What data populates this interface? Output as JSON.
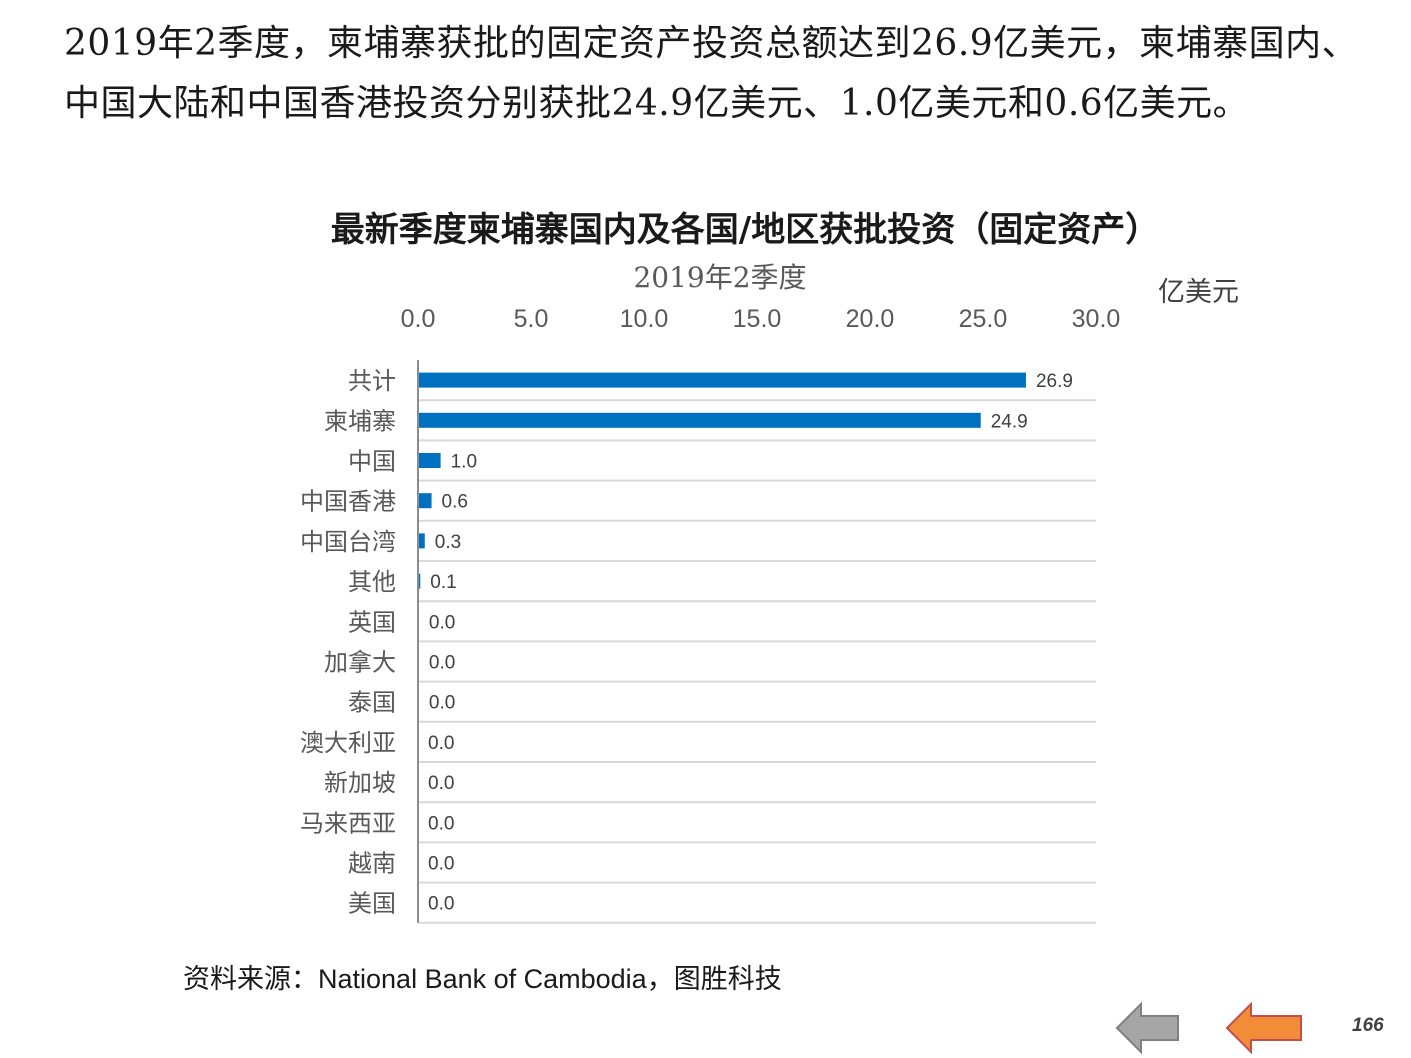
{
  "intro_text": "2019年2季度，柬埔寨获批的固定资产投资总额达到26.9亿美元，柬埔寨国内、中国大陆和中国香港投资分别获批24.9亿美元、1.0亿美元和0.6亿美元。",
  "unit_label": "亿美元",
  "source_text": "资料来源：National Bank of Cambodia，图胜科技",
  "page_number": "166",
  "colors": {
    "bar": "#0070C0",
    "nav_prev": "#A6A6A6",
    "nav_next": "#F28C38"
  },
  "nav": {
    "prev_icon": "arrow-left-icon",
    "next_icon": "arrow-left-icon"
  },
  "chart_data": {
    "type": "bar",
    "orientation": "horizontal",
    "title": "最新季度柬埔寨国内及各国/地区获批投资（固定资产）",
    "subtitle": "2019年2季度",
    "categories": [
      "共计",
      "柬埔寨",
      "中国",
      "中国香港",
      "中国台湾",
      "其他",
      "英国",
      "加拿大",
      "泰国",
      "澳大利亚",
      "新加坡",
      "马来西亚",
      "越南",
      "美国"
    ],
    "values": [
      26.9,
      24.9,
      1.0,
      0.6,
      0.3,
      0.1,
      0.04,
      0.04,
      0.04,
      0.0,
      0.0,
      0.0,
      0.0,
      0.0
    ],
    "data_labels": [
      "26.9",
      "24.9",
      "1.0",
      "0.6",
      "0.3",
      "0.1",
      "0.0",
      "0.0",
      "0.0",
      "0.0",
      "0.0",
      "0.0",
      "0.0",
      "0.0"
    ],
    "xlim": [
      0,
      30
    ],
    "xticks": [
      "0.0",
      "5.0",
      "10.0",
      "15.0",
      "20.0",
      "25.0",
      "30.0"
    ],
    "xaxis_position": "top",
    "grid": true
  }
}
